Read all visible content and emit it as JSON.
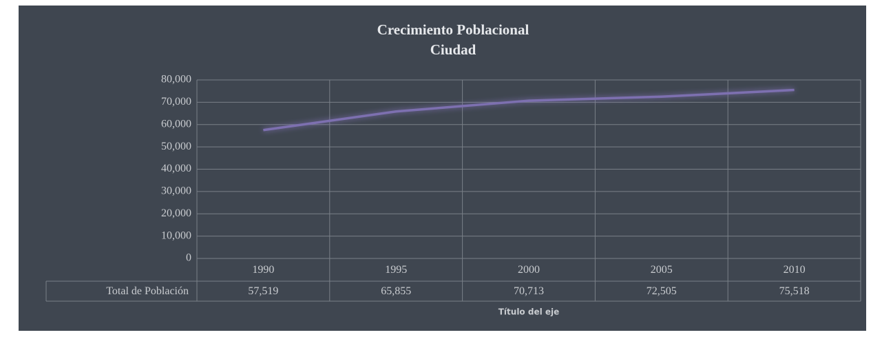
{
  "chart_data": {
    "type": "line",
    "title": "Crecimiento Poblacional",
    "subtitle": "Ciudad",
    "x_label": "Título del eje",
    "categories": [
      "1990",
      "1995",
      "2000",
      "2005",
      "2010"
    ],
    "series": [
      {
        "name": "Total de Población",
        "color": "#7d70b0",
        "values": [
          57519,
          65855,
          70713,
          72505,
          75518
        ],
        "value_labels": [
          "57,519",
          "65,855",
          "70,713",
          "72,505",
          "75,518"
        ]
      }
    ],
    "ylim": [
      0,
      80000
    ],
    "yticks": [
      0,
      {
        "value": 10000,
        "label": "10,000"
      },
      {
        "value": 20000,
        "label": "20,000"
      },
      {
        "value": 30000,
        "label": "30,000"
      },
      {
        "value": 40000,
        "label": "40,000"
      },
      {
        "value": 50000,
        "label": "50,000"
      },
      {
        "value": 60000,
        "label": "60,000"
      },
      {
        "value": 70000,
        "label": "70,000"
      },
      {
        "value": 80000,
        "label": "80,000"
      }
    ],
    "grid": true
  }
}
